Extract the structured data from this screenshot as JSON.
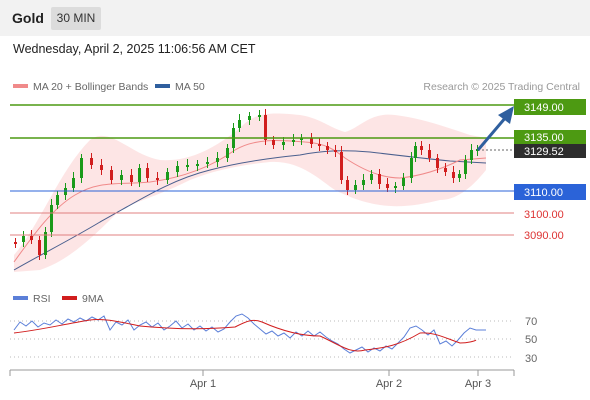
{
  "header": {
    "instrument": "Gold",
    "timeframe": "30 MIN",
    "datetime": "Wednesday, April 2, 2025 11:06:56 AM CET"
  },
  "legend": {
    "ma20": "MA 20 + Bollinger Bands",
    "ma50": "MA 50",
    "credit": "Research © 2025 Trading Central",
    "rsi": "RSI",
    "rsi_ma": "9MA"
  },
  "colors": {
    "resistance": "#4d9a12",
    "support": "#2b63d8",
    "target": "#e05555",
    "arrow": "#2f5f9e",
    "ma20": "#f08a8a",
    "ma50": "#4a5f8e",
    "band": "#fde2e2",
    "bull": "#1a9a1a",
    "bear": "#d11e1e",
    "rsi_line": "#5b7fd8",
    "rsi_ma_line": "#d11e1e"
  },
  "chart_data": [
    {
      "type": "candlestick",
      "series": [
        {
          "name": "MA 20 + Bollinger Bands"
        },
        {
          "name": "MA 50"
        }
      ],
      "levels": [
        {
          "label": "3149.00",
          "value": 3149.0,
          "kind": "resistance",
          "style": "filled-tag"
        },
        {
          "label": "3135.00",
          "value": 3135.0,
          "kind": "resistance",
          "style": "filled-tag"
        },
        {
          "label": "3129.52",
          "value": 3129.52,
          "kind": "last-price",
          "style": "dark-tag"
        },
        {
          "label": "3110.00",
          "value": 3110.0,
          "kind": "support",
          "style": "filled-tag"
        },
        {
          "label": "3100.00",
          "value": 3100.0,
          "kind": "support",
          "style": "text"
        },
        {
          "label": "3090.00",
          "value": 3090.0,
          "kind": "support",
          "style": "text"
        }
      ],
      "x_ticks": [
        "Apr 1",
        "Apr 2",
        "Apr 3"
      ],
      "grid": false,
      "arrow": "up-right toward 3149.00"
    },
    {
      "type": "line",
      "series": [
        {
          "name": "RSI"
        },
        {
          "name": "9MA"
        }
      ],
      "y_ticks": [
        70,
        50,
        30
      ],
      "ylim": [
        20,
        80
      ],
      "grid": "dotted at 70/50/30"
    }
  ]
}
